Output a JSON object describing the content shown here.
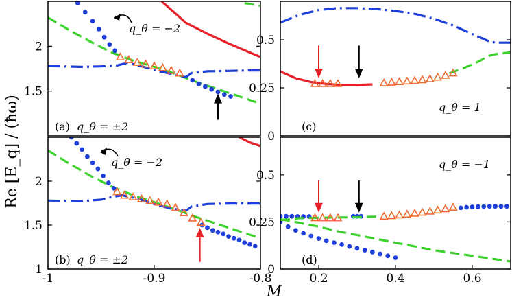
{
  "figure": {
    "x_axis_label": "M",
    "y_axis_label": "Re [E_q] / (ħω)"
  },
  "chart_data": [
    {
      "panel": "a",
      "type": "line",
      "panel_label": "(a)",
      "q_label": "q_θ = ±2",
      "annotation": "q_θ = −2",
      "xlim": [
        -1,
        -0.8
      ],
      "ylim": [
        1,
        2.5
      ],
      "x_ticks": [],
      "y_ticks": [
        1.5,
        2
      ],
      "series": [
        {
          "name": "red solid",
          "style": "solid",
          "color": "#e8202a",
          "x": [
            -0.893,
            -0.87,
            -0.85,
            -0.83,
            -0.81,
            -0.8
          ],
          "y": [
            2.5,
            2.26,
            2.14,
            2.03,
            1.93,
            1.88
          ]
        },
        {
          "name": "green dashed",
          "style": "dashed",
          "color": "#3fd22e",
          "x": [
            -1.0,
            -0.98,
            -0.96,
            -0.94,
            -0.92,
            -0.9,
            -0.88,
            -0.86,
            -0.84,
            -0.82,
            -0.8
          ],
          "y": [
            2.32,
            2.18,
            2.05,
            1.93,
            1.84,
            1.77,
            1.69,
            1.6,
            1.52,
            1.44,
            1.36
          ]
        },
        {
          "name": "green dashed upper",
          "style": "dashed",
          "color": "#3fd22e",
          "x": [
            -0.815,
            -0.8
          ],
          "y": [
            2.48,
            2.45
          ]
        },
        {
          "name": "blue dash-dot",
          "style": "dashdot",
          "color": "#1e3fd8",
          "x": [
            -1.0,
            -0.97,
            -0.95,
            -0.935,
            -0.925,
            -0.91,
            -0.895,
            -0.88,
            -0.87,
            -0.865,
            -0.85,
            -0.83,
            -0.81,
            -0.8
          ],
          "y": [
            1.78,
            1.77,
            1.775,
            1.785,
            1.815,
            1.77,
            1.72,
            1.68,
            1.655,
            1.7,
            1.72,
            1.725,
            1.73,
            1.73
          ]
        },
        {
          "name": "blue dots",
          "style": "dots",
          "color": "#1e3fd8",
          "x": [
            -0.972,
            -0.965,
            -0.958,
            -0.952,
            -0.947,
            -0.942,
            -0.937,
            -0.864,
            -0.858,
            -0.852,
            -0.846,
            -0.84,
            -0.834,
            -0.828
          ],
          "y": [
            2.48,
            2.38,
            2.28,
            2.19,
            2.1,
            2.02,
            1.95,
            1.62,
            1.58,
            1.55,
            1.52,
            1.49,
            1.46,
            1.44
          ]
        },
        {
          "name": "orange triangles",
          "style": "triangles",
          "color": "#ef6b32",
          "x": [
            -0.932,
            -0.924,
            -0.916,
            -0.908,
            -0.9,
            -0.892,
            -0.884,
            -0.876
          ],
          "y": [
            1.88,
            1.85,
            1.82,
            1.8,
            1.78,
            1.76,
            1.73,
            1.7
          ]
        }
      ],
      "arrows": [
        {
          "color": "#000000",
          "x": -0.84,
          "y_from": 1.18,
          "y_to": 1.47
        }
      ]
    },
    {
      "panel": "b",
      "type": "line",
      "panel_label": "(b)",
      "q_label": "q_θ = ±2",
      "annotation": "q_θ = −2",
      "xlim": [
        -1,
        -0.8
      ],
      "ylim": [
        1,
        2.5
      ],
      "x_ticks": [
        -1,
        -0.9,
        -0.8
      ],
      "x_tick_labels": [
        "-1",
        "-0.9",
        "-0.8"
      ],
      "y_ticks": [
        1,
        1.5,
        2
      ],
      "series": [
        {
          "name": "red solid",
          "style": "solid",
          "color": "#e8202a",
          "x": [
            -0.82,
            -0.81,
            -0.8
          ],
          "y": [
            2.5,
            2.44,
            2.4
          ]
        },
        {
          "name": "green dashed",
          "style": "dashed",
          "color": "#3fd22e",
          "x": [
            -1.0,
            -0.98,
            -0.96,
            -0.94,
            -0.92,
            -0.9,
            -0.88,
            -0.86,
            -0.84,
            -0.82,
            -0.8
          ],
          "y": [
            2.35,
            2.2,
            2.06,
            1.94,
            1.84,
            1.76,
            1.68,
            1.59,
            1.51,
            1.43,
            1.35
          ]
        },
        {
          "name": "blue dash-dot",
          "style": "dashdot",
          "color": "#1e3fd8",
          "x": [
            -1.0,
            -0.97,
            -0.95,
            -0.94,
            -0.93,
            -0.915,
            -0.9,
            -0.885,
            -0.87,
            -0.865,
            -0.85,
            -0.83,
            -0.81,
            -0.8
          ],
          "y": [
            1.78,
            1.77,
            1.79,
            1.82,
            1.84,
            1.8,
            1.74,
            1.69,
            1.665,
            1.71,
            1.74,
            1.745,
            1.745,
            1.745
          ]
        },
        {
          "name": "blue dots",
          "style": "dots",
          "color": "#1e3fd8",
          "x": [
            -0.978,
            -0.973,
            -0.968,
            -0.963,
            -0.958,
            -0.953,
            -0.948,
            -0.943,
            -0.938,
            -0.855,
            -0.85,
            -0.845,
            -0.84,
            -0.835,
            -0.83,
            -0.825,
            -0.82,
            -0.815,
            -0.81,
            -0.805
          ],
          "y": [
            2.5,
            2.43,
            2.36,
            2.28,
            2.21,
            2.14,
            2.06,
            1.98,
            1.92,
            1.5,
            1.47,
            1.44,
            1.42,
            1.4,
            1.37,
            1.35,
            1.33,
            1.3,
            1.28,
            1.26
          ]
        },
        {
          "name": "orange triangles",
          "style": "triangles",
          "color": "#ef6b32",
          "x": [
            -0.935,
            -0.928,
            -0.92,
            -0.912,
            -0.904,
            -0.896,
            -0.888,
            -0.88,
            -0.872,
            -0.864,
            -0.856
          ],
          "y": [
            1.88,
            1.84,
            1.82,
            1.8,
            1.78,
            1.76,
            1.74,
            1.7,
            1.64,
            1.58,
            1.53
          ]
        }
      ],
      "arrows": [
        {
          "color": "#e8202a",
          "x": -0.857,
          "y_from": 1.08,
          "y_to": 1.47
        }
      ]
    },
    {
      "panel": "c",
      "type": "line",
      "panel_label": "(c)",
      "q_label": "q_θ = 1",
      "xlim": [
        0.1,
        0.7
      ],
      "ylim": [
        0,
        0.7
      ],
      "x_ticks": [],
      "y_ticks": [
        0,
        0.25,
        0.5
      ],
      "series": [
        {
          "name": "blue dash-dot",
          "style": "dashdot",
          "color": "#1e3fd8",
          "x": [
            0.1,
            0.15,
            0.2,
            0.25,
            0.3,
            0.35,
            0.4,
            0.45,
            0.5,
            0.55,
            0.6,
            0.64,
            0.66,
            0.7
          ],
          "y": [
            0.59,
            0.63,
            0.655,
            0.665,
            0.665,
            0.66,
            0.65,
            0.635,
            0.61,
            0.575,
            0.53,
            0.495,
            0.485,
            0.485
          ]
        },
        {
          "name": "red solid",
          "style": "solid",
          "color": "#e8202a",
          "x": [
            0.1,
            0.14,
            0.18,
            0.22,
            0.26,
            0.3,
            0.34
          ],
          "y": [
            0.335,
            0.3,
            0.28,
            0.27,
            0.265,
            0.265,
            0.268
          ]
        },
        {
          "name": "green dashed",
          "style": "dashed",
          "color": "#3fd22e",
          "x": [
            0.54,
            0.58,
            0.62,
            0.64,
            0.66,
            0.7
          ],
          "y": [
            0.325,
            0.355,
            0.39,
            0.415,
            0.425,
            0.435
          ]
        },
        {
          "name": "orange triangles",
          "style": "triangles",
          "color": "#ef6b32",
          "x": [
            0.19,
            0.21,
            0.23,
            0.25,
            0.37,
            0.39,
            0.41,
            0.43,
            0.45,
            0.47,
            0.49,
            0.51,
            0.53,
            0.55
          ],
          "y": [
            0.272,
            0.272,
            0.272,
            0.272,
            0.276,
            0.279,
            0.282,
            0.285,
            0.288,
            0.292,
            0.297,
            0.305,
            0.315,
            0.327
          ]
        }
      ],
      "arrows": [
        {
          "color": "#e8202a",
          "x": 0.2,
          "y_from": 0.47,
          "y_to": 0.3
        },
        {
          "color": "#000000",
          "x": 0.305,
          "y_from": 0.47,
          "y_to": 0.3
        }
      ]
    },
    {
      "panel": "d",
      "type": "line",
      "panel_label": "(d)",
      "q_label": "q_θ = −1",
      "xlim": [
        0.1,
        0.7
      ],
      "ylim": [
        0,
        0.7
      ],
      "x_ticks": [
        0.2,
        0.4,
        0.6
      ],
      "x_tick_labels": [
        "0.2",
        "0.4",
        "0.6"
      ],
      "y_ticks": [
        0,
        0.25,
        0.5
      ],
      "series": [
        {
          "name": "blue dots upper",
          "style": "dots",
          "color": "#1e3fd8",
          "x": [
            0.1,
            0.115,
            0.13,
            0.145,
            0.16,
            0.175,
            0.29,
            0.3,
            0.31,
            0.57,
            0.585,
            0.6,
            0.615,
            0.63,
            0.645,
            0.66,
            0.675,
            0.69
          ],
          "y": [
            0.28,
            0.28,
            0.28,
            0.279,
            0.279,
            0.279,
            0.28,
            0.28,
            0.28,
            0.325,
            0.328,
            0.33,
            0.331,
            0.332,
            0.333,
            0.333,
            0.333,
            0.333
          ]
        },
        {
          "name": "blue dots lower",
          "style": "dots",
          "color": "#1e3fd8",
          "x": [
            0.1,
            0.12,
            0.14,
            0.16,
            0.18,
            0.2,
            0.22,
            0.24,
            0.26,
            0.28,
            0.3,
            0.32,
            0.34,
            0.36,
            0.38,
            0.4
          ],
          "y": [
            0.25,
            0.225,
            0.205,
            0.19,
            0.175,
            0.162,
            0.15,
            0.14,
            0.13,
            0.12,
            0.11,
            0.1,
            0.09,
            0.08,
            0.07,
            0.06
          ]
        },
        {
          "name": "green dashed lower",
          "style": "dashed",
          "color": "#3fd22e",
          "x": [
            0.1,
            0.15,
            0.2,
            0.25,
            0.3,
            0.35,
            0.4,
            0.45,
            0.5,
            0.55,
            0.6,
            0.65,
            0.7
          ],
          "y": [
            0.265,
            0.245,
            0.225,
            0.2,
            0.18,
            0.16,
            0.14,
            0.12,
            0.1,
            0.085,
            0.07,
            0.055,
            0.04
          ]
        },
        {
          "name": "green dashed upper",
          "style": "dashed",
          "color": "#3fd22e",
          "x": [
            0.1,
            0.15,
            0.2,
            0.25,
            0.3,
            0.35
          ],
          "y": [
            0.26,
            0.27,
            0.272,
            0.274,
            0.275,
            0.278
          ]
        },
        {
          "name": "orange triangles",
          "style": "triangles",
          "color": "#ef6b32",
          "x": [
            0.19,
            0.21,
            0.23,
            0.25,
            0.37,
            0.39,
            0.41,
            0.43,
            0.45,
            0.47,
            0.49,
            0.51,
            0.53,
            0.55
          ],
          "y": [
            0.272,
            0.272,
            0.272,
            0.272,
            0.28,
            0.283,
            0.287,
            0.291,
            0.296,
            0.301,
            0.307,
            0.313,
            0.32,
            0.328
          ]
        }
      ],
      "arrows": [
        {
          "color": "#e8202a",
          "x": 0.2,
          "y_from": 0.47,
          "y_to": 0.3
        },
        {
          "color": "#000000",
          "x": 0.305,
          "y_from": 0.47,
          "y_to": 0.3
        }
      ]
    }
  ]
}
